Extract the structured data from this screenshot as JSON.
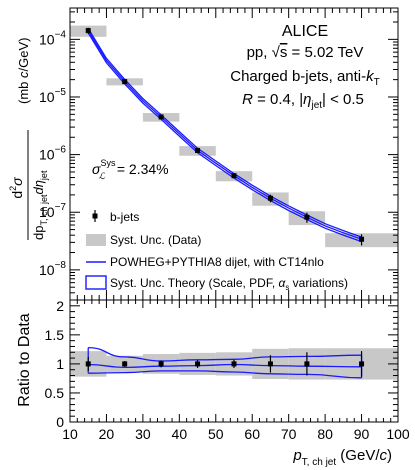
{
  "title": "ALICE",
  "annotations": {
    "energy_prefix": "pp, ",
    "energy_sqrt": "√",
    "energy_s": "s",
    "energy_suffix": " = 5.02 TeV",
    "jets_prefix": "Charged b-jets, anti-",
    "jets_k": "k",
    "jets_sub": "T",
    "radius_R": "R",
    "radius_mid": " = 0.4, |",
    "radius_eta": "η",
    "radius_eta_sub": "jet",
    "radius_end": "| < 0.5",
    "lumi_sigma": "σ",
    "lumi_sup": "Sys",
    "lumi_sub": "ℒ",
    "lumi_value": " = 2.34%"
  },
  "legend": {
    "data": "b-jets",
    "syst_data": "Syst. Unc. (Data)",
    "theory": "POWHEG+PYTHIA8 dijet, with CT14nlo",
    "theory_band_prefix": "Syst. Unc. Theory (Scale, PDF, ",
    "theory_band_alpha": "α",
    "theory_band_s": "s",
    "theory_band_suffix": " variations)"
  },
  "ylabel_top": {
    "d2": "d",
    "sq": "2",
    "sigma": "σ",
    "dpt": "dp",
    "pt_sub": "T, ch jet",
    "deta": "dη",
    "eta_sub": "jet",
    "unit_open": "(mb ",
    "unit_c": "c",
    "unit_close": "/GeV)"
  },
  "ylabel_bottom": "Ratio to Data",
  "xlabel": {
    "p": "p",
    "sub": "T, ch jet",
    "unit_open": " (GeV/",
    "unit_c": "c",
    "unit_close": ")"
  },
  "colors": {
    "theory": "#1a1aff",
    "syst_band": "#c8c8c8",
    "data": "#000000"
  },
  "chart_data": [
    {
      "type": "scatter",
      "panel": "spectrum",
      "yscale": "log",
      "xlim": [
        10,
        100
      ],
      "ylim": [
        3e-09,
        0.00035
      ],
      "y_ticks": [
        1e-08,
        1e-07,
        1e-06,
        1e-05,
        0.0001
      ],
      "y_tick_labels": [
        {
          "base": "10",
          "exp": "−8"
        },
        {
          "base": "10",
          "exp": "−7"
        },
        {
          "base": "10",
          "exp": "−6"
        },
        {
          "base": "10",
          "exp": "−5"
        },
        {
          "base": "10",
          "exp": "−4"
        }
      ],
      "series": [
        {
          "name": "b-jets",
          "bins": [
            [
              10,
              20
            ],
            [
              20,
              30
            ],
            [
              30,
              40
            ],
            [
              40,
              50
            ],
            [
              50,
              60
            ],
            [
              60,
              70
            ],
            [
              70,
              80
            ],
            [
              80,
              100
            ]
          ],
          "x": [
            15,
            25,
            35,
            45,
            55,
            65,
            75,
            90
          ],
          "y": [
            0.000142,
            1.85e-05,
            4.5e-06,
            1.18e-06,
            4.3e-07,
            1.75e-07,
            8.2e-08,
            3.4e-08
          ],
          "syst_rel": [
            0.22,
            0.14,
            0.17,
            0.19,
            0.2,
            0.26,
            0.27,
            0.27
          ],
          "stat_rel": [
            0.12,
            0.05,
            0.06,
            0.07,
            0.07,
            0.15,
            0.2,
            0.22
          ]
        },
        {
          "name": "POWHEG+PYTHIA8 dijet, with CT14nlo",
          "x": [
            15,
            20,
            25,
            30,
            35,
            40,
            45,
            50,
            55,
            60,
            65,
            70,
            75,
            80,
            85,
            90
          ],
          "y": [
            0.000142,
            4.3e-05,
            1.85e-05,
            8.6e-06,
            4.5e-06,
            2.3e-06,
            1.18e-06,
            7.1e-07,
            4.3e-07,
            2.7e-07,
            1.75e-07,
            1.18e-07,
            8.2e-08,
            5.8e-08,
            4.4e-08,
            3.4e-08
          ],
          "band_rel": 0.09
        }
      ]
    },
    {
      "type": "scatter",
      "panel": "ratio",
      "ylabel": "Ratio to Data",
      "xlim": [
        10,
        100
      ],
      "ylim": [
        0,
        2.1
      ],
      "x_ticks": [
        10,
        20,
        30,
        40,
        50,
        60,
        70,
        80,
        90,
        100
      ],
      "y_ticks": [
        0,
        0.5,
        1,
        1.5,
        2
      ],
      "y_tick_labels": [
        "0",
        "0.5",
        "1",
        "1.5",
        "2"
      ],
      "series": [
        {
          "name": "Syst. Unc. (Data)",
          "bins": [
            [
              10,
              20
            ],
            [
              20,
              30
            ],
            [
              30,
              40
            ],
            [
              40,
              50
            ],
            [
              50,
              60
            ],
            [
              60,
              70
            ],
            [
              70,
              80
            ],
            [
              80,
              100
            ]
          ],
          "y": [
            1,
            1,
            1,
            1,
            1,
            1,
            1,
            1
          ],
          "low": [
            0.78,
            0.86,
            0.83,
            0.81,
            0.8,
            0.74,
            0.73,
            0.73
          ],
          "high": [
            1.22,
            1.14,
            1.17,
            1.19,
            1.2,
            1.26,
            1.27,
            1.27
          ]
        },
        {
          "name": "b-jets",
          "x": [
            15,
            25,
            35,
            45,
            55,
            65,
            75,
            90
          ],
          "y": [
            1,
            1,
            1,
            1,
            1,
            1,
            1,
            1
          ],
          "err": [
            0.12,
            0.05,
            0.06,
            0.07,
            0.07,
            0.15,
            0.2,
            0.22
          ]
        },
        {
          "name": "POWHEG+PYTHIA8 dijet, with CT14nlo",
          "x": [
            15,
            25,
            35,
            45,
            55,
            65,
            75,
            90
          ],
          "y": [
            0.99,
            0.94,
            0.96,
            0.97,
            0.99,
            0.97,
            0.96,
            0.95
          ],
          "low": [
            0.84,
            0.85,
            0.88,
            0.88,
            0.86,
            0.83,
            0.82,
            0.76
          ],
          "high": [
            1.28,
            1.12,
            1.05,
            1.07,
            1.08,
            1.12,
            1.13,
            1.15
          ]
        }
      ]
    }
  ]
}
